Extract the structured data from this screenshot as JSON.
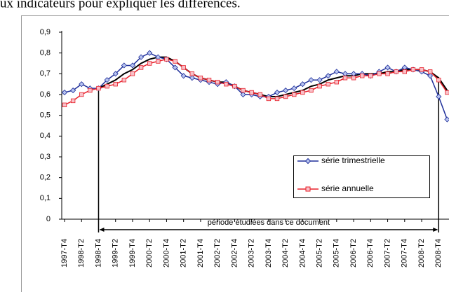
{
  "caption": "ux indicateurs pour expliquer les différences.",
  "chart_data": {
    "type": "line",
    "categories": [
      "1997-T4",
      null,
      "1998-T2",
      null,
      "1998-T4",
      null,
      "1999-T2",
      null,
      "1999-T4",
      null,
      "2000-T2",
      null,
      "2000-T4",
      null,
      "2001-T2",
      null,
      "2001-T4",
      null,
      "2002-T2",
      null,
      "2002-T4",
      null,
      "2003-T2",
      null,
      "2003-T4",
      null,
      "2004-T2",
      null,
      "2004-T4",
      null,
      "2005-T2",
      null,
      "2005-T4",
      null,
      "2006-T2",
      null,
      "2006-T4",
      null,
      "2007-T2",
      null,
      "2007-T4",
      null,
      "2008-T2",
      null,
      "2008-T4",
      null
    ],
    "series": [
      {
        "name": "série trimestrielle",
        "color": "#1f2f9a",
        "marker": "diamond",
        "values": [
          0.61,
          0.62,
          0.65,
          0.63,
          0.63,
          0.67,
          0.7,
          0.74,
          0.74,
          0.78,
          0.8,
          0.78,
          0.77,
          0.73,
          0.69,
          0.68,
          0.67,
          0.66,
          0.65,
          0.66,
          0.64,
          0.6,
          0.6,
          0.59,
          0.59,
          0.61,
          0.62,
          0.63,
          0.65,
          0.67,
          0.67,
          0.69,
          0.71,
          0.7,
          0.7,
          0.7,
          0.69,
          0.71,
          0.73,
          0.71,
          0.73,
          0.72,
          0.71,
          0.69,
          0.59,
          0.48
        ]
      },
      {
        "name": "série annuelle",
        "color": "#e8202a",
        "marker": "square",
        "values": [
          0.55,
          0.57,
          0.6,
          0.62,
          0.63,
          0.64,
          0.65,
          0.67,
          0.7,
          0.73,
          0.75,
          0.76,
          0.77,
          0.76,
          0.73,
          0.7,
          0.68,
          0.67,
          0.66,
          0.65,
          0.64,
          0.62,
          0.61,
          0.6,
          0.58,
          0.58,
          0.59,
          0.6,
          0.61,
          0.62,
          0.64,
          0.65,
          0.66,
          0.68,
          0.68,
          0.69,
          0.69,
          0.7,
          0.7,
          0.71,
          0.71,
          0.72,
          0.72,
          0.71,
          0.67,
          0.61
        ]
      },
      {
        "color": "#000000",
        "values": [
          null,
          null,
          null,
          null,
          0.63,
          0.65,
          0.67,
          0.7,
          0.72,
          0.75,
          0.77,
          0.78,
          0.78,
          0.76,
          0.73,
          0.7,
          0.68,
          0.67,
          0.66,
          0.66,
          0.64,
          0.62,
          0.61,
          0.6,
          0.59,
          0.59,
          0.6,
          0.61,
          0.62,
          0.64,
          0.65,
          0.67,
          0.68,
          0.69,
          0.69,
          0.7,
          0.7,
          0.7,
          0.71,
          0.71,
          0.72,
          0.72,
          0.72,
          0.71,
          0.68,
          0.62
        ]
      }
    ],
    "ylim": [
      0,
      0.9
    ],
    "yticks": [
      {
        "value": 0,
        "label": "0"
      },
      {
        "value": 0.1,
        "label": "0,1"
      },
      {
        "value": 0.2,
        "label": "0,2"
      },
      {
        "value": 0.3,
        "label": "0,3"
      },
      {
        "value": 0.4,
        "label": "0,4"
      },
      {
        "value": 0.5,
        "label": "0,5"
      },
      {
        "value": 0.6,
        "label": "0,6"
      },
      {
        "value": 0.7,
        "label": "0,7"
      },
      {
        "value": 0.8,
        "label": "0,8"
      },
      {
        "value": 0.9,
        "label": "0,9"
      }
    ],
    "annotation": {
      "text": "période étudiées dans ce document",
      "from": "1998-T4",
      "to": "2008-T4"
    },
    "legend": "right"
  }
}
